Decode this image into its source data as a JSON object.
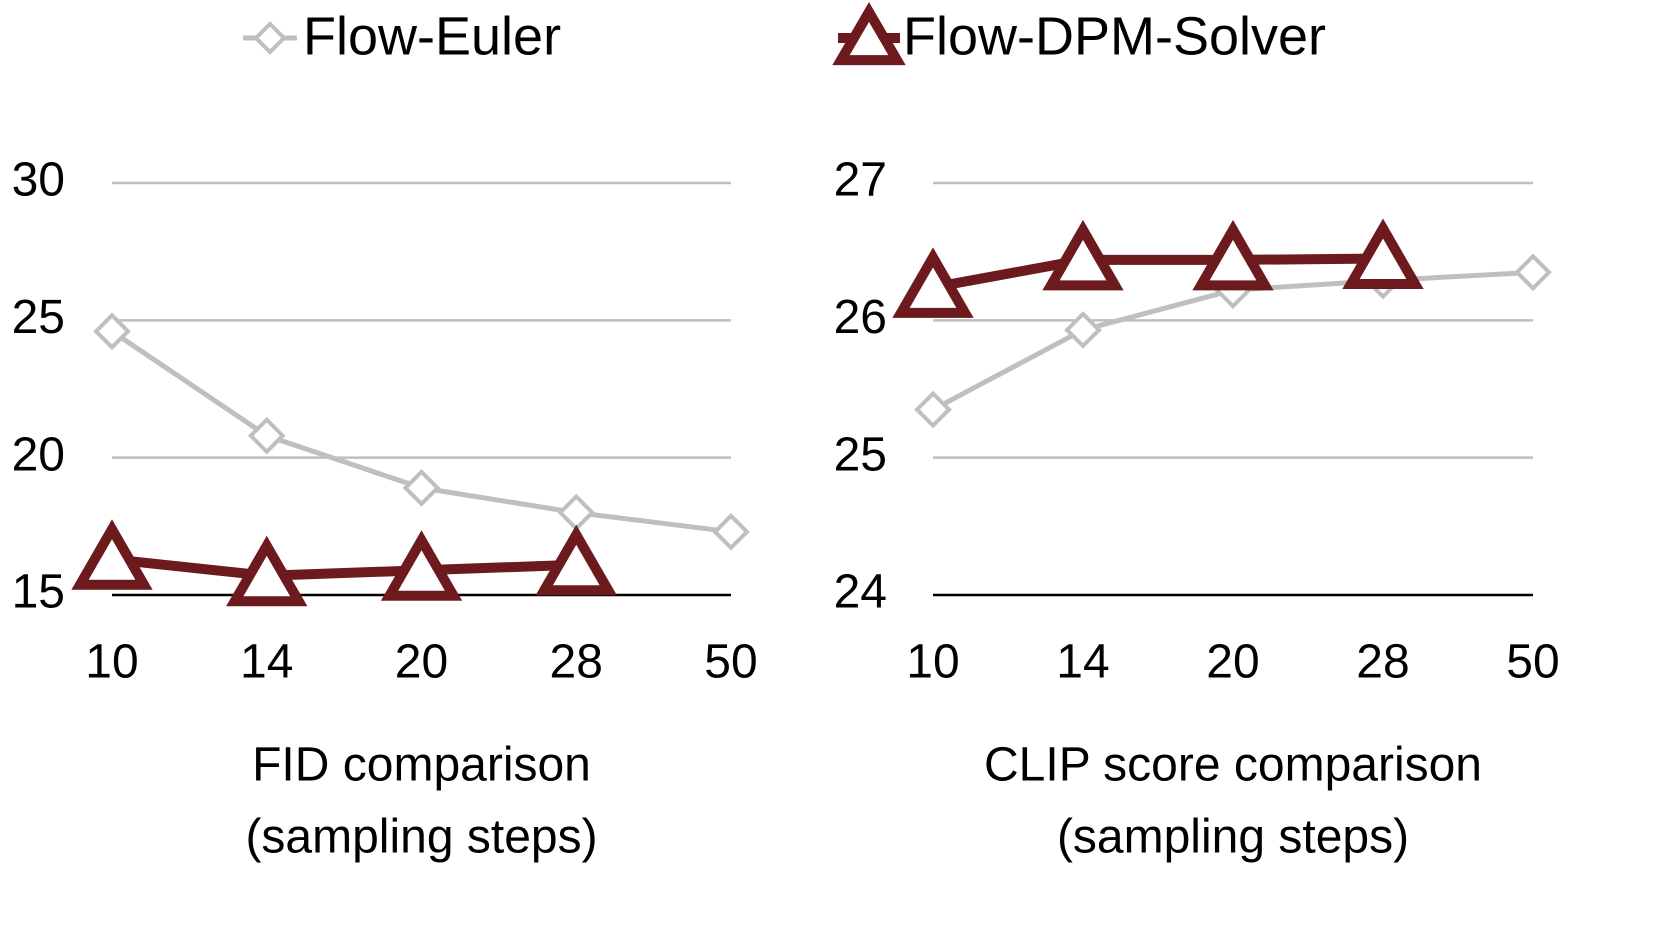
{
  "chart_data": [
    {
      "type": "line",
      "categories": [
        "10",
        "14",
        "20",
        "28",
        "50"
      ],
      "series": [
        {
          "name": "Flow-Euler",
          "color": "#bfbfbf",
          "marker": "diamond",
          "values": [
            24.6,
            20.8,
            18.9,
            18.0,
            17.3
          ]
        },
        {
          "name": "Flow-DPM-Solver",
          "color": "#6d1a1e",
          "marker": "triangle",
          "values": [
            16.3,
            15.7,
            15.9,
            16.1,
            null
          ]
        }
      ],
      "ylim": [
        15,
        30
      ],
      "yticks": [
        15,
        20,
        25,
        30
      ],
      "grid": true,
      "xlabel": [
        "FID comparison",
        "(sampling steps)"
      ]
    },
    {
      "type": "line",
      "categories": [
        "10",
        "14",
        "20",
        "28",
        "50"
      ],
      "series": [
        {
          "color": "#bfbfbf",
          "marker": "diamond",
          "values": [
            25.35,
            25.93,
            26.22,
            26.29,
            26.35
          ]
        },
        {
          "color": "#6d1a1e",
          "marker": "triangle",
          "values": [
            26.24,
            26.44,
            26.44,
            26.45,
            null
          ]
        }
      ],
      "ylim": [
        24,
        27
      ],
      "yticks": [
        24,
        25,
        26,
        27
      ],
      "grid": true,
      "xlabel": [
        "CLIP score comparison",
        "(sampling steps)"
      ]
    }
  ]
}
